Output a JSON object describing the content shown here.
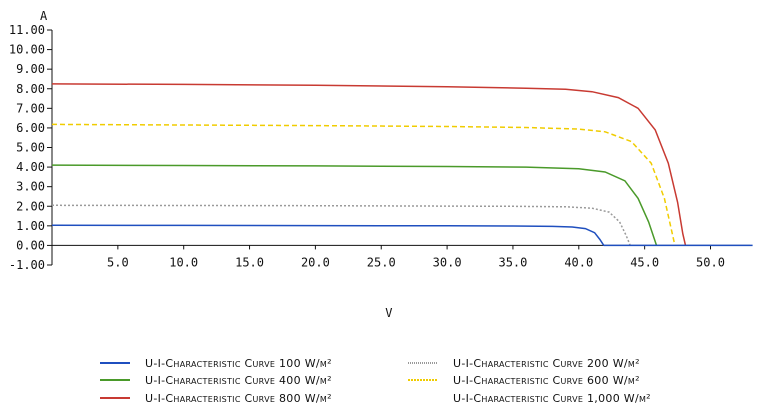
{
  "chart_data": {
    "type": "line",
    "title": "",
    "ylabel": "A",
    "xlabel": "V",
    "xlim": [
      0,
      53
    ],
    "ylim": [
      -1,
      11
    ],
    "xticks": [
      "5.0",
      "10.0",
      "15.0",
      "20.0",
      "25.0",
      "30.0",
      "35.0",
      "40.0",
      "45.0",
      "50.0"
    ],
    "yticks": [
      "11.00",
      "10.00",
      "9.00",
      "8.00",
      "7.00",
      "6.00",
      "5.00",
      "4.00",
      "3.00",
      "2.00",
      "1.00",
      "0.00",
      "-1.00"
    ],
    "grid": false,
    "legend_position": "bottom",
    "series": [
      {
        "name": "U-I-Characteristic Curve 100 W/m²",
        "color": "#1f4fbf",
        "style": "solid",
        "points": [
          [
            0,
            1.03
          ],
          [
            10,
            1.02
          ],
          [
            20,
            1.01
          ],
          [
            30,
            1.0
          ],
          [
            35,
            0.99
          ],
          [
            38,
            0.97
          ],
          [
            39.5,
            0.94
          ],
          [
            40.5,
            0.86
          ],
          [
            41.2,
            0.65
          ],
          [
            41.6,
            0.3
          ],
          [
            41.9,
            0.0
          ]
        ]
      },
      {
        "name": "U-I-Characteristic Curve 200 W/m²",
        "color": "#9a9a9a",
        "style": "dotted",
        "points": [
          [
            0,
            2.05
          ],
          [
            10,
            2.04
          ],
          [
            20,
            2.03
          ],
          [
            30,
            2.01
          ],
          [
            35,
            2.0
          ],
          [
            39,
            1.97
          ],
          [
            41,
            1.9
          ],
          [
            42.3,
            1.7
          ],
          [
            43.1,
            1.2
          ],
          [
            43.6,
            0.5
          ],
          [
            43.9,
            0.0
          ]
        ]
      },
      {
        "name": "U-I-Characteristic Curve 400 W/m²",
        "color": "#4a9a2a",
        "style": "solid",
        "points": [
          [
            0,
            4.1
          ],
          [
            10,
            4.08
          ],
          [
            20,
            4.06
          ],
          [
            30,
            4.03
          ],
          [
            36,
            4.0
          ],
          [
            40,
            3.92
          ],
          [
            42,
            3.75
          ],
          [
            43.5,
            3.3
          ],
          [
            44.5,
            2.4
          ],
          [
            45.3,
            1.2
          ],
          [
            45.9,
            0.0
          ]
        ]
      },
      {
        "name": "U-I-Characteristic Curve 600 W/m²",
        "color": "#f0cc00",
        "style": "dashed",
        "points": [
          [
            0,
            6.18
          ],
          [
            10,
            6.15
          ],
          [
            20,
            6.12
          ],
          [
            30,
            6.07
          ],
          [
            36,
            6.02
          ],
          [
            40,
            5.94
          ],
          [
            42,
            5.8
          ],
          [
            44,
            5.3
          ],
          [
            45.5,
            4.2
          ],
          [
            46.5,
            2.4
          ],
          [
            47.1,
            0.6
          ],
          [
            47.3,
            0.0
          ]
        ]
      },
      {
        "name": "U-I-Characteristic Curve 800 W/m²",
        "color": "#c83a32",
        "style": "solid",
        "points": [
          [
            0,
            8.25
          ],
          [
            10,
            8.22
          ],
          [
            20,
            8.18
          ],
          [
            30,
            8.1
          ],
          [
            36,
            8.03
          ],
          [
            39,
            7.97
          ],
          [
            41,
            7.85
          ],
          [
            43,
            7.55
          ],
          [
            44.5,
            7.0
          ],
          [
            45.8,
            5.9
          ],
          [
            46.8,
            4.2
          ],
          [
            47.5,
            2.2
          ],
          [
            47.9,
            0.6
          ],
          [
            48.1,
            0.0
          ]
        ]
      },
      {
        "name": "U-I-Characteristic Curve 1,000 W/m²",
        "color": "#ffffff",
        "style": "solid",
        "points": []
      }
    ],
    "baseline_points": [
      [
        41.9,
        0
      ],
      [
        53.2,
        0
      ]
    ]
  }
}
